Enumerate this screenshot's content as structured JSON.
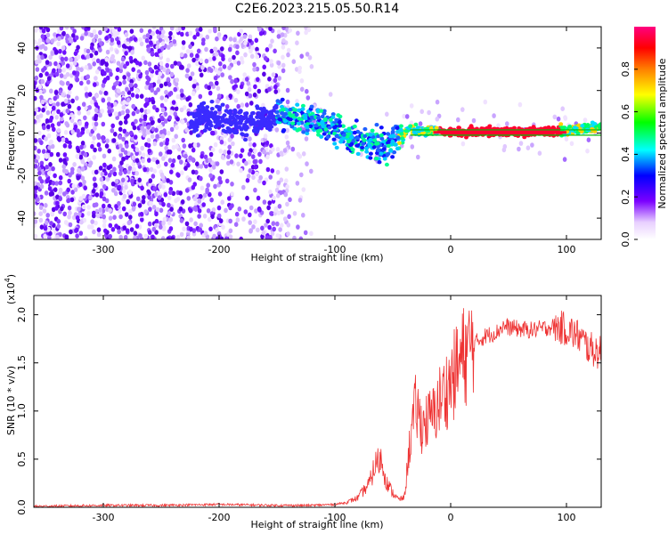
{
  "figure": {
    "title": "C2E6.2023.215.05.50.R14"
  },
  "chart_data": [
    {
      "type": "heatmap",
      "xlabel": "Height of straight line (km)",
      "ylabel": "Frequency (Hz)",
      "xlim": [
        -360,
        130
      ],
      "ylim": [
        -50,
        50
      ],
      "xticks": [
        "-300",
        "-200",
        "-100",
        "0",
        "100"
      ],
      "yticks": [
        "-40",
        "-20",
        "0",
        "20",
        "40"
      ],
      "colorbar": {
        "label": "Normalized spectral amplitude",
        "range": [
          0.0,
          1.0
        ],
        "ticks": [
          "0.0",
          "0.2",
          "0.4",
          "0.6",
          "0.8"
        ],
        "colors": [
          "#ffffff",
          "#7b00ff",
          "#0000ff",
          "#00ffff",
          "#00ff00",
          "#ffff00",
          "#ff8000",
          "#ff0000",
          "#ff0080"
        ]
      },
      "ridge": {
        "x": [
          -220,
          -205,
          -190,
          -170,
          -145,
          -130,
          -115,
          -100,
          -85,
          -70,
          -55,
          -45,
          -35,
          -25,
          -15,
          0,
          30,
          60,
          90,
          110,
          130
        ],
        "y": [
          6,
          9,
          4,
          6,
          9,
          7,
          5,
          3,
          -3,
          -4,
          -6,
          -1,
          2,
          1,
          1,
          0.5,
          0.5,
          0.5,
          1,
          2,
          3
        ]
      }
    },
    {
      "type": "line",
      "xlabel": "Height of straight line (km)",
      "ylabel": "SNR (10 * v/v)",
      "yscale_label": "(x10",
      "yscale_exp": "4",
      "xlim": [
        -360,
        130
      ],
      "ylim": [
        0.0,
        2.2
      ],
      "xticks": [
        "-300",
        "-200",
        "-100",
        "0",
        "100"
      ],
      "yticks": [
        "0.0",
        "0.5",
        "1.0",
        "1.5",
        "2.0"
      ],
      "line_color": "#ee3333",
      "series": [
        {
          "x": [
            -360,
            -300,
            -250,
            -200,
            -150,
            -120,
            -100,
            -90,
            -80,
            -70,
            -65,
            -60,
            -55,
            -50,
            -45,
            -40,
            -35,
            -30,
            -25,
            -20,
            -15,
            -10,
            -5,
            0,
            10,
            20,
            30,
            40,
            45,
            50,
            60,
            70,
            80,
            90,
            100,
            110,
            120,
            130
          ],
          "values": [
            0.01,
            0.02,
            0.02,
            0.03,
            0.02,
            0.02,
            0.03,
            0.05,
            0.1,
            0.25,
            0.45,
            0.5,
            0.25,
            0.15,
            0.08,
            0.1,
            0.7,
            1.05,
            0.85,
            0.9,
            0.95,
            1.1,
            1.2,
            1.3,
            1.55,
            1.7,
            1.78,
            1.82,
            1.88,
            1.87,
            1.85,
            1.84,
            1.86,
            1.88,
            1.85,
            1.78,
            1.65,
            1.6
          ]
        }
      ]
    }
  ]
}
